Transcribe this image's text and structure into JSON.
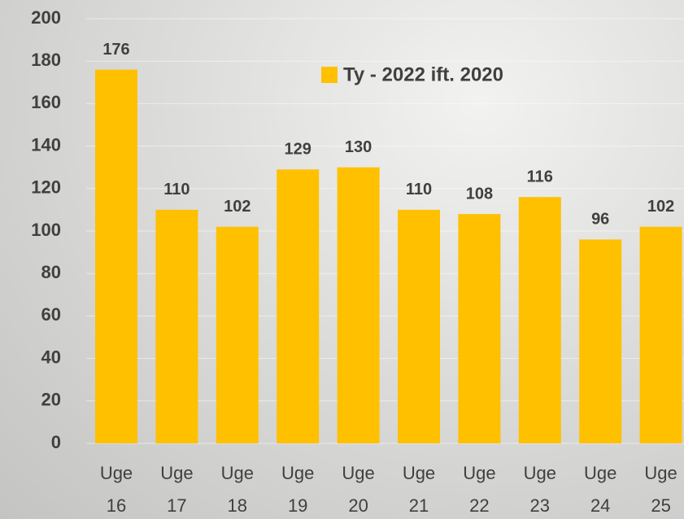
{
  "chart_data": {
    "type": "bar",
    "legend_label": "Ty - 2022 ift. 2020",
    "categories": [
      "Uge 16",
      "Uge 17",
      "Uge 18",
      "Uge 19",
      "Uge 20",
      "Uge 21",
      "Uge 22",
      "Uge 23",
      "Uge 24",
      "Uge 25"
    ],
    "values": [
      176,
      110,
      102,
      129,
      130,
      110,
      108,
      116,
      96,
      102
    ],
    "color": "#ffc000",
    "ylim": [
      0,
      200
    ],
    "yticks": [
      0,
      20,
      40,
      60,
      80,
      100,
      120,
      140,
      160,
      180,
      200
    ],
    "grid": true
  }
}
